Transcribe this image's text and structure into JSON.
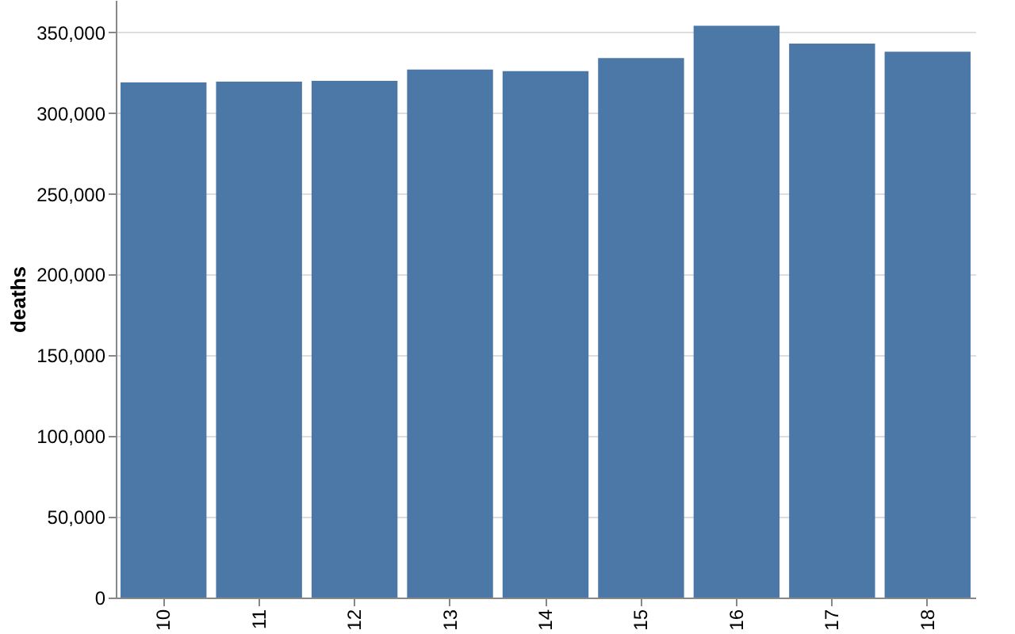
{
  "chart_data": {
    "type": "bar",
    "ylabel": "deaths",
    "categories": [
      "10",
      "11",
      "12",
      "13",
      "14",
      "15",
      "16",
      "17",
      "18"
    ],
    "values": [
      319000,
      319500,
      320000,
      327000,
      326000,
      334000,
      354000,
      343000,
      338000
    ],
    "color": "#4c78a8",
    "ylim": [
      0,
      370000
    ],
    "yticks": [
      0,
      {
        "value": 50000,
        "label": "50,000"
      },
      {
        "value": 100000,
        "label": "100,000"
      },
      {
        "value": 150000,
        "label": "150,000"
      },
      {
        "value": 200000,
        "label": "200,000"
      },
      {
        "value": 250000,
        "label": "250,000"
      },
      {
        "value": 300000,
        "label": "300,000"
      },
      {
        "value": 350000,
        "label": "350,000"
      }
    ],
    "grid": "y"
  }
}
